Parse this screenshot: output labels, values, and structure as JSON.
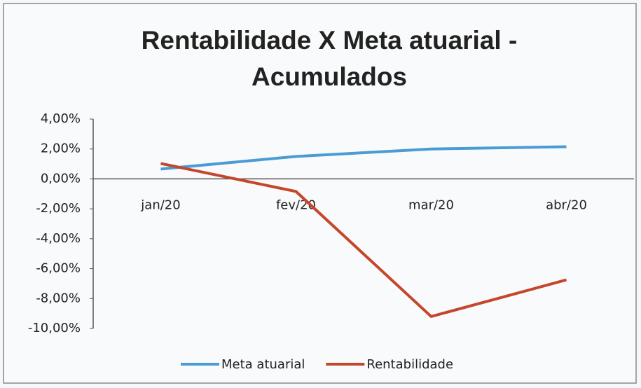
{
  "chart_data": {
    "type": "line",
    "title": [
      "Rentabilidade X Meta atuarial -",
      "Acumulados"
    ],
    "categories": [
      "jan/20",
      "fev/20",
      "mar/20",
      "abr/20"
    ],
    "series": [
      {
        "name": "Meta atuarial",
        "color": "#4b9bd5",
        "values": [
          0.66,
          1.5,
          2.0,
          2.15
        ]
      },
      {
        "name": "Rentabilidade",
        "color": "#c4472b",
        "values": [
          1.03,
          -0.84,
          -9.2,
          -6.75
        ]
      }
    ],
    "ylim": [
      -10,
      4
    ],
    "yticks": [
      {
        "value": 4,
        "label": "4,00%"
      },
      {
        "value": 2,
        "label": "2,00%"
      },
      {
        "value": 0,
        "label": "0,00%"
      },
      {
        "value": -2,
        "label": "-2,00%"
      },
      {
        "value": -4,
        "label": "-4,00%"
      },
      {
        "value": -6,
        "label": "-6,00%"
      },
      {
        "value": -8,
        "label": "-8,00%"
      },
      {
        "value": -10,
        "label": "-10,00%"
      }
    ],
    "negative_tick_color": "#e0302a",
    "legend": "bottom"
  }
}
